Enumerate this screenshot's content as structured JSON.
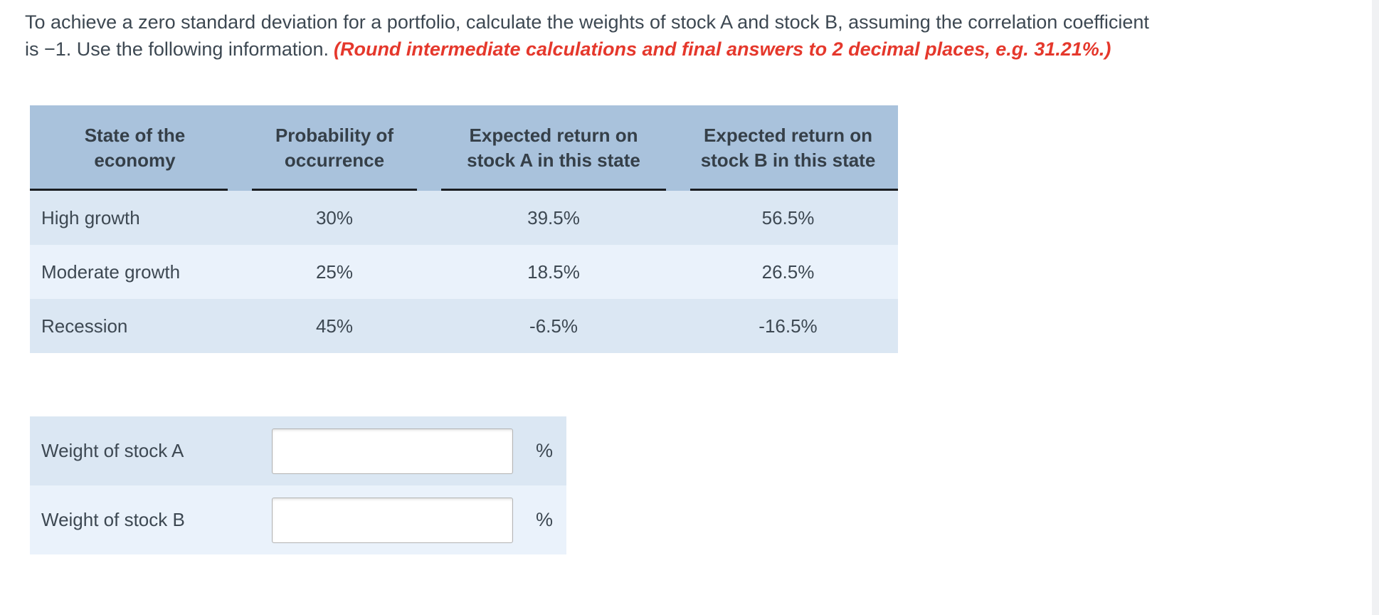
{
  "page": {
    "background": "#ffffff",
    "text_color": "#3d4852",
    "note_red": "#e5382c",
    "header_bg": "#a9c2dc",
    "row_bg_dark": "#dbe7f3",
    "row_bg_light": "#eaf2fb",
    "header_underline": "#1a1d21"
  },
  "question": {
    "line1": "To achieve a zero standard deviation for a portfolio, calculate the weights of stock A and stock B, assuming the correlation coefficient",
    "line2": "is −1. Use the following information.",
    "note": "(Round intermediate calculations and final answers to 2 decimal places, e.g. 31.21%.)"
  },
  "table": {
    "columns": [
      {
        "label": "State of the\neconomy"
      },
      {
        "label": "Probability of\noccurrence"
      },
      {
        "label": "Expected return on\nstock A in this state"
      },
      {
        "label": "Expected return on\nstock B in this state"
      }
    ],
    "rows": [
      {
        "state": "High growth",
        "probability": "30%",
        "return_a": "39.5%",
        "return_b": "56.5%"
      },
      {
        "state": "Moderate growth",
        "probability": "25%",
        "return_a": "18.5%",
        "return_b": "26.5%"
      },
      {
        "state": "Recession",
        "probability": "45%",
        "return_a": "-6.5%",
        "return_b": "-16.5%"
      }
    ]
  },
  "answers": {
    "rows": [
      {
        "label": "Weight of stock A",
        "value": "",
        "unit": "%"
      },
      {
        "label": "Weight of stock B",
        "value": "",
        "unit": "%"
      }
    ]
  }
}
